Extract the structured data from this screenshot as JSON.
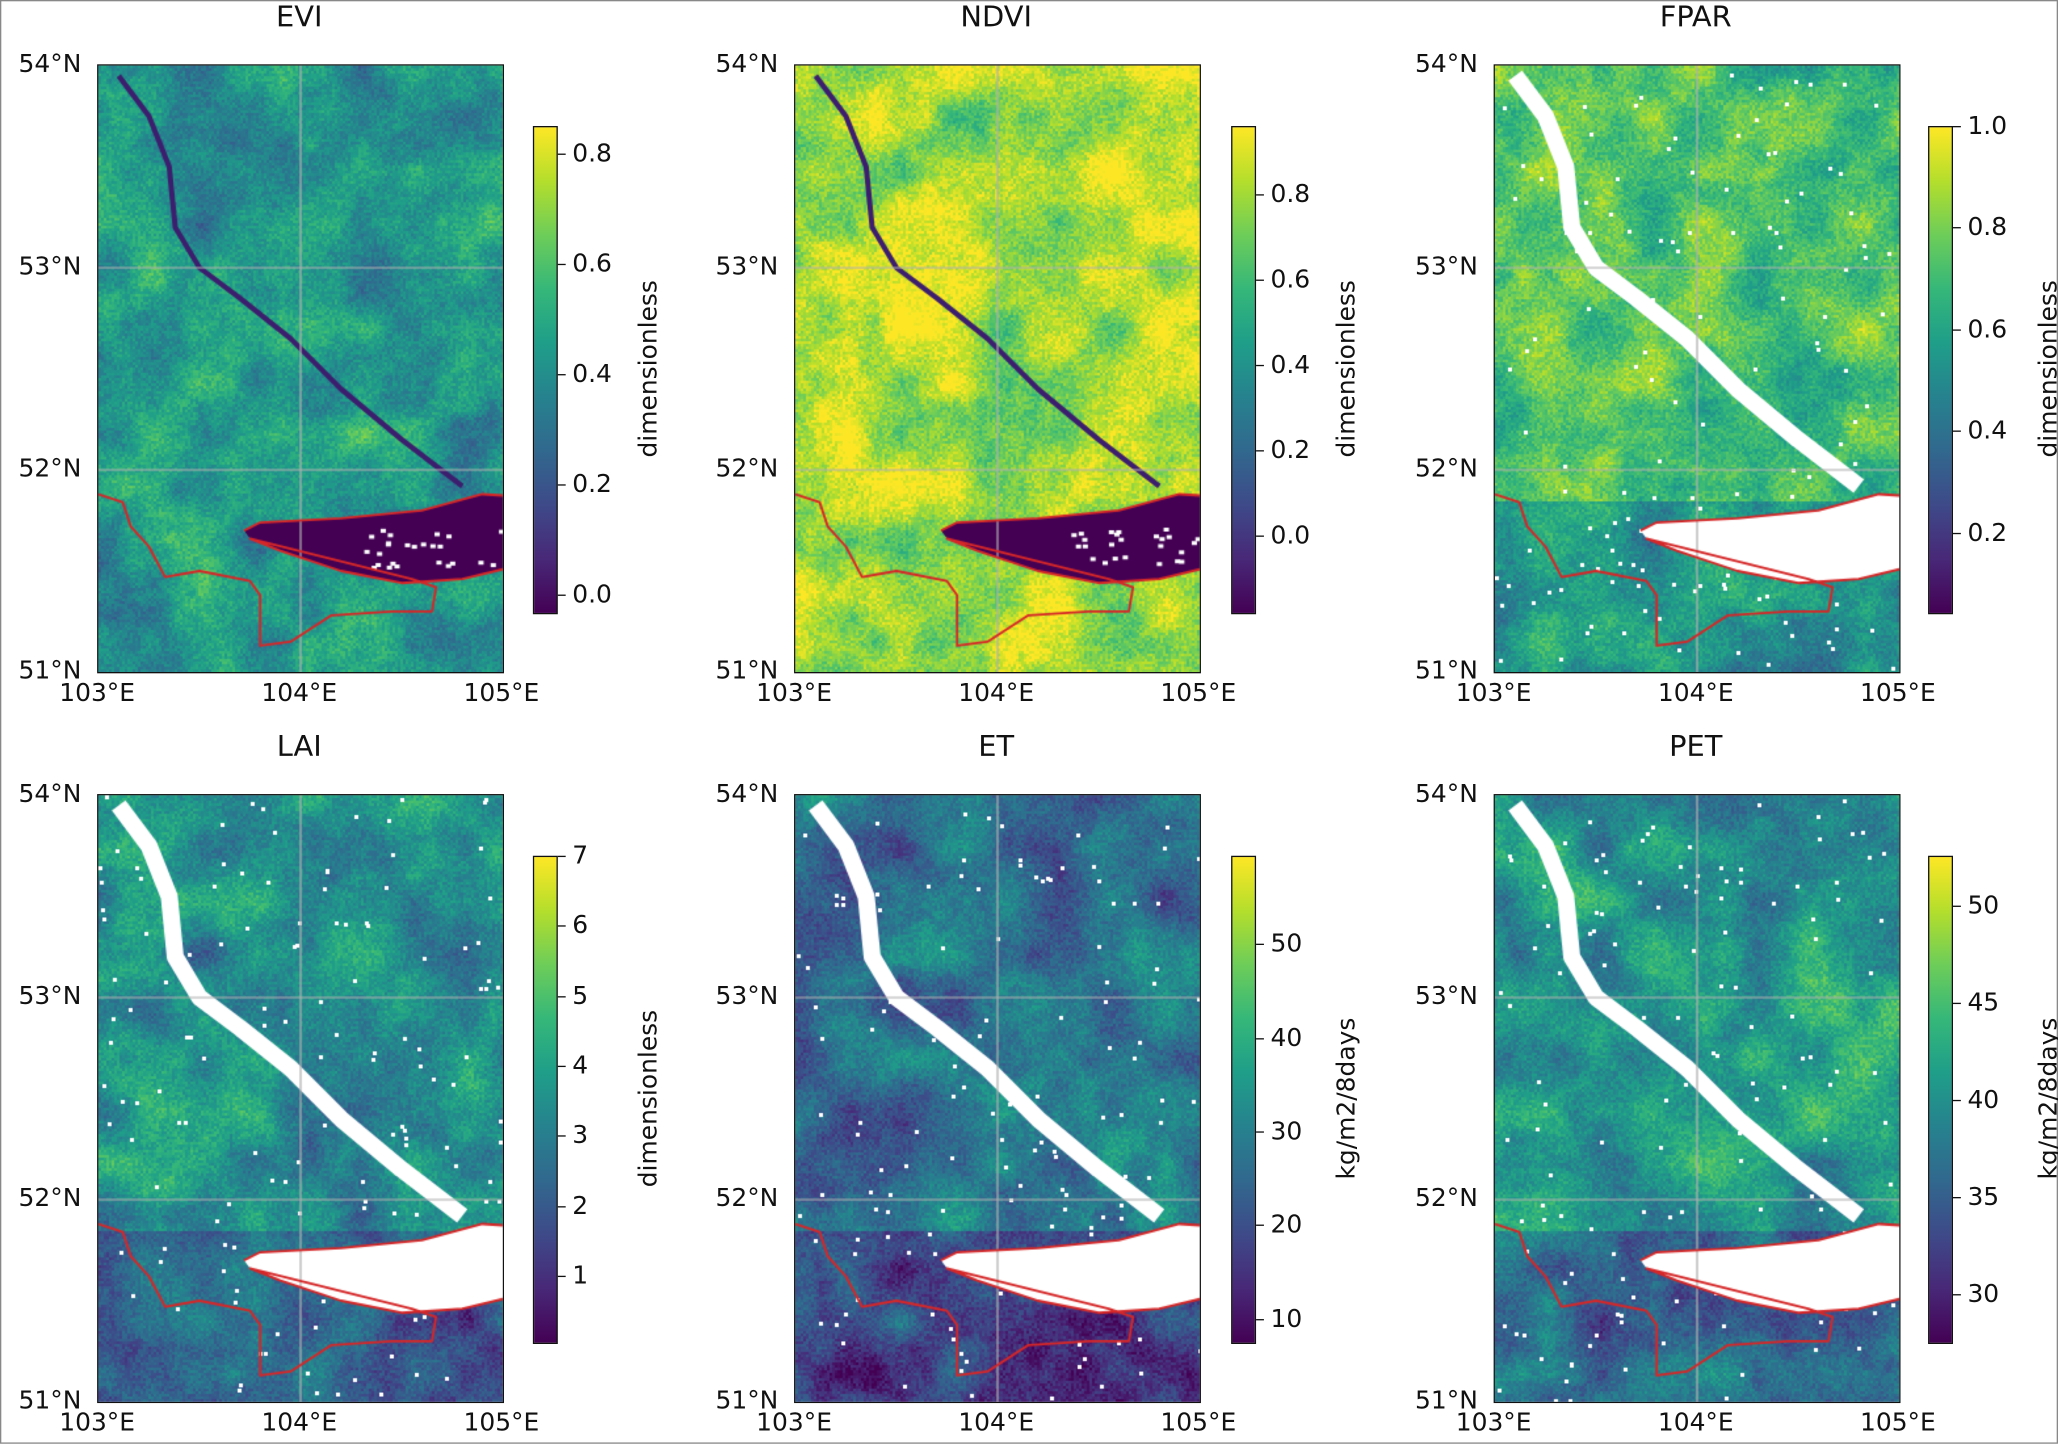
{
  "chart_data": [
    {
      "type": "heatmap",
      "title": "EVI",
      "colorbar_label": "dimensionless",
      "colormap": "viridis",
      "vmin": -0.03,
      "vmax": 0.85,
      "colorbar_ticks": [
        "0.0",
        "0.2",
        "0.4",
        "0.6",
        "0.8"
      ],
      "colorbar_values": [
        0.0,
        0.2,
        0.4,
        0.6,
        0.8
      ],
      "xticks": [
        "103°E",
        "104°E",
        "105°E"
      ],
      "yticks": [
        "51°N",
        "52°N",
        "53°N",
        "54°N"
      ],
      "xlim": [
        103,
        105
      ],
      "ylim": [
        51,
        54
      ],
      "mean_level": 0.45,
      "water": "dark",
      "grid": true
    },
    {
      "type": "heatmap",
      "title": "NDVI",
      "colorbar_label": "dimensionless",
      "colormap": "viridis",
      "vmin": -0.18,
      "vmax": 0.96,
      "colorbar_ticks": [
        "0.0",
        "0.2",
        "0.4",
        "0.6",
        "0.8"
      ],
      "colorbar_values": [
        0.0,
        0.2,
        0.4,
        0.6,
        0.8
      ],
      "xticks": [
        "103°E",
        "104°E",
        "105°E"
      ],
      "yticks": [
        "51°N",
        "52°N",
        "53°N",
        "54°N"
      ],
      "xlim": [
        103,
        105
      ],
      "ylim": [
        51,
        54
      ],
      "mean_level": 0.82,
      "water": "dark",
      "grid": true
    },
    {
      "type": "heatmap",
      "title": "FPAR",
      "colorbar_label": "dimensionless",
      "colormap": "viridis",
      "vmin": 0.045,
      "vmax": 1.0,
      "colorbar_ticks": [
        "0.2",
        "0.4",
        "0.6",
        "0.8",
        "1.0"
      ],
      "colorbar_values": [
        0.2,
        0.4,
        0.6,
        0.8,
        1.0
      ],
      "xticks": [
        "103°E",
        "104°E",
        "105°E"
      ],
      "yticks": [
        "51°N",
        "52°N",
        "53°N",
        "54°N"
      ],
      "xlim": [
        103,
        105
      ],
      "ylim": [
        51,
        54
      ],
      "mean_level": 0.72,
      "water": "missing",
      "grid": true
    },
    {
      "type": "heatmap",
      "title": "LAI",
      "colorbar_label": "dimensionless",
      "colormap": "viridis",
      "vmin": 0.06,
      "vmax": 7.0,
      "colorbar_ticks": [
        "1",
        "2",
        "3",
        "4",
        "5",
        "6",
        "7"
      ],
      "colorbar_values": [
        1,
        2,
        3,
        4,
        5,
        6,
        7
      ],
      "xticks": [
        "103°E",
        "104°E",
        "105°E"
      ],
      "yticks": [
        "51°N",
        "52°N",
        "53°N",
        "54°N"
      ],
      "xlim": [
        103,
        105
      ],
      "ylim": [
        51,
        54
      ],
      "mean_level": 3.5,
      "water": "missing",
      "grid": true
    },
    {
      "type": "heatmap",
      "title": "ET",
      "colorbar_label": "kg/m2/8days",
      "colormap": "viridis",
      "vmin": 7.6,
      "vmax": 59.4,
      "colorbar_ticks": [
        "10",
        "20",
        "30",
        "40",
        "50"
      ],
      "colorbar_values": [
        10,
        20,
        30,
        40,
        50
      ],
      "xticks": [
        "103°E",
        "104°E",
        "105°E"
      ],
      "yticks": [
        "51°N",
        "52°N",
        "53°N",
        "54°N"
      ],
      "xlim": [
        103,
        105
      ],
      "ylim": [
        51,
        54
      ],
      "mean_level": 28,
      "water": "missing",
      "grid": true
    },
    {
      "type": "heatmap",
      "title": "PET",
      "colorbar_label": "kg/m2/8days",
      "colormap": "viridis",
      "vmin": 27.6,
      "vmax": 52.6,
      "colorbar_ticks": [
        "30",
        "35",
        "40",
        "45",
        "50"
      ],
      "colorbar_values": [
        30,
        35,
        40,
        45,
        50
      ],
      "xticks": [
        "103°E",
        "104°E",
        "105°E"
      ],
      "yticks": [
        "51°N",
        "52°N",
        "53°N",
        "54°N"
      ],
      "xlim": [
        103,
        105
      ],
      "ylim": [
        51,
        54
      ],
      "mean_level": 41,
      "water": "missing",
      "grid": true
    }
  ],
  "colors": {
    "border": "#d62728",
    "grid": "#b0b0b0",
    "water_missing": "#ffffff"
  }
}
